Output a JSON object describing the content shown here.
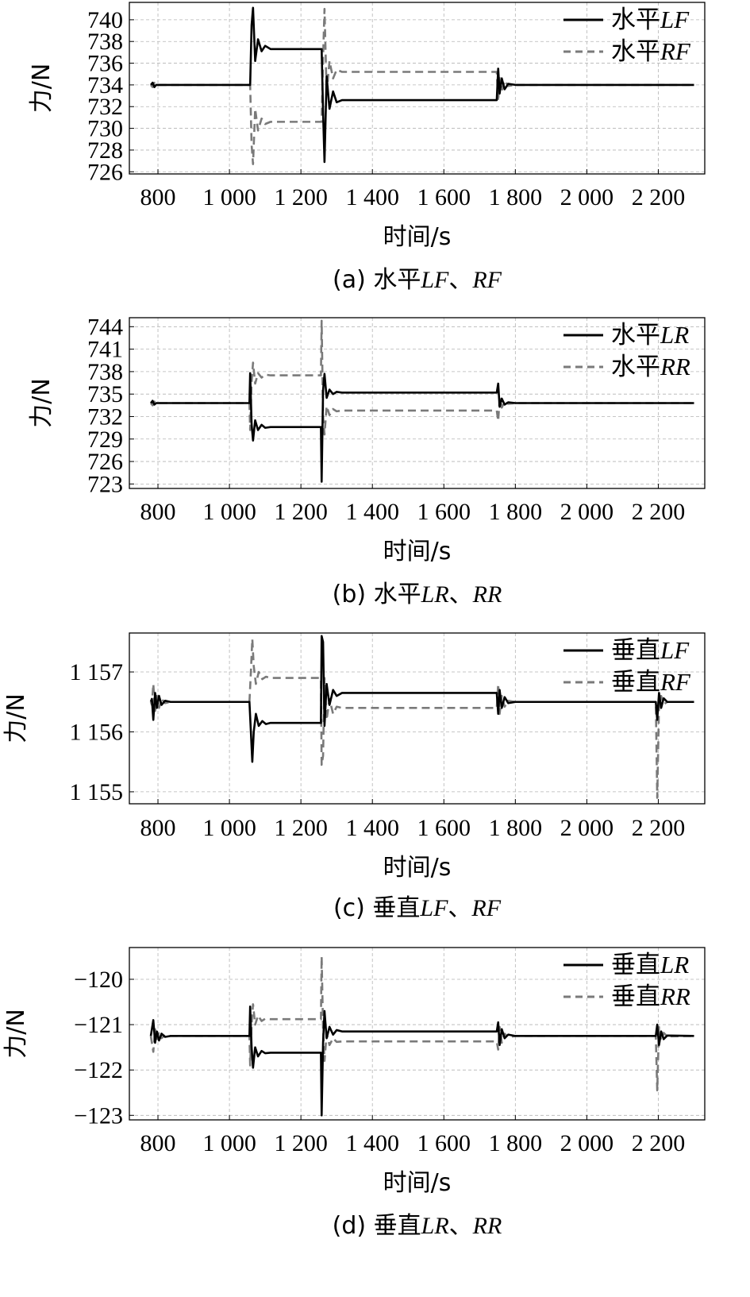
{
  "chart_data": [
    {
      "type": "line",
      "caption": "(a) 水平LF、RF",
      "caption_parts": [
        "(a) 水平",
        "LF",
        "、",
        "RF"
      ],
      "xlabel": "时间/s",
      "ylabel": "力/N",
      "xlim": [
        720,
        2330
      ],
      "ylim": [
        725.8,
        741.6
      ],
      "xticks": [
        800,
        1000,
        1200,
        1400,
        1600,
        1800,
        2000,
        2200
      ],
      "xtick_labels": [
        "800",
        "1 000",
        "1 200",
        "1 400",
        "1 600",
        "1 800",
        "2 000",
        "2 200"
      ],
      "yticks": [
        726,
        728,
        730,
        732,
        734,
        736,
        738,
        740
      ],
      "ytick_labels": [
        "726",
        "728",
        "730",
        "732",
        "734",
        "736",
        "738",
        "740"
      ],
      "grid": true,
      "legend_position": "top-right",
      "series": [
        {
          "name": "水平LF",
          "name_main": "水平",
          "name_italic": "LF",
          "style": "solid",
          "x": [
            780,
            785,
            790,
            795,
            1058,
            1062,
            1066,
            1072,
            1080,
            1090,
            1100,
            1115,
            1130,
            1258,
            1262,
            1266,
            1272,
            1280,
            1290,
            1300,
            1315,
            1330,
            1748,
            1752,
            1756,
            1762,
            1770,
            1780,
            1800,
            2300
          ],
          "y": [
            734,
            734.2,
            733.8,
            734,
            734,
            739.5,
            741.1,
            736.2,
            738.2,
            737.1,
            737.6,
            737.3,
            737.3,
            737.3,
            731.5,
            726.9,
            734.8,
            731.8,
            733.4,
            732.4,
            732.6,
            732.6,
            732.6,
            735.5,
            733.2,
            734.6,
            733.6,
            734.1,
            734,
            734
          ]
        },
        {
          "name": "水平RF",
          "name_main": "水平",
          "name_italic": "RF",
          "style": "dashed",
          "x": [
            780,
            785,
            790,
            795,
            1058,
            1062,
            1066,
            1072,
            1080,
            1090,
            1100,
            1115,
            1130,
            1258,
            1262,
            1266,
            1272,
            1280,
            1290,
            1300,
            1315,
            1330,
            1748,
            1752,
            1756,
            1762,
            1770,
            1780,
            1800,
            2300
          ],
          "y": [
            734,
            733.8,
            734.2,
            734,
            734,
            728.5,
            726.7,
            731.8,
            729.8,
            730.9,
            730.4,
            730.6,
            730.6,
            730.6,
            736.5,
            741,
            733.2,
            736.2,
            734.6,
            735.4,
            735.2,
            735.2,
            735.2,
            732.5,
            734.8,
            733.4,
            734.4,
            733.9,
            734,
            734
          ]
        }
      ]
    },
    {
      "type": "line",
      "caption": "(b) 水平LR、RR",
      "caption_parts": [
        "(b) 水平",
        "LR",
        "、",
        "RR"
      ],
      "xlabel": "时间/s",
      "ylabel": "力/N",
      "xlim": [
        720,
        2330
      ],
      "ylim": [
        722.4,
        745.2
      ],
      "xticks": [
        800,
        1000,
        1200,
        1400,
        1600,
        1800,
        2000,
        2200
      ],
      "xtick_labels": [
        "800",
        "1 000",
        "1 200",
        "1 400",
        "1 600",
        "1 800",
        "2 000",
        "2 200"
      ],
      "yticks": [
        723,
        726,
        729,
        732,
        735,
        738,
        741,
        744
      ],
      "ytick_labels": [
        "723",
        "726",
        "729",
        "732",
        "735",
        "738",
        "741",
        "744"
      ],
      "grid": true,
      "legend_position": "top-right",
      "series": [
        {
          "name": "水平LR",
          "name_main": "水平",
          "name_italic": "LR",
          "style": "solid",
          "x": [
            780,
            785,
            790,
            795,
            1056,
            1058,
            1062,
            1066,
            1072,
            1080,
            1090,
            1100,
            1115,
            1130,
            1256,
            1258,
            1262,
            1266,
            1272,
            1280,
            1290,
            1300,
            1315,
            1330,
            1748,
            1752,
            1756,
            1762,
            1770,
            1780,
            1800,
            2300
          ],
          "y": [
            733.8,
            734.1,
            733.6,
            733.8,
            733.8,
            737.8,
            731,
            728.8,
            731.5,
            730.2,
            730.9,
            730.5,
            730.6,
            730.6,
            730.6,
            723.3,
            735.5,
            737.7,
            734.5,
            735.6,
            735,
            735.3,
            735.2,
            735.2,
            735.2,
            736.4,
            733.3,
            734.4,
            733.6,
            733.9,
            733.8,
            733.8
          ]
        },
        {
          "name": "水平RR",
          "name_main": "水平",
          "name_italic": "RR",
          "style": "dashed",
          "x": [
            780,
            785,
            790,
            795,
            1056,
            1058,
            1062,
            1066,
            1072,
            1080,
            1090,
            1100,
            1115,
            1130,
            1256,
            1258,
            1262,
            1266,
            1272,
            1280,
            1290,
            1300,
            1315,
            1330,
            1748,
            1752,
            1756,
            1762,
            1770,
            1780,
            1800,
            2300
          ],
          "y": [
            733.8,
            733.5,
            734,
            733.8,
            733.8,
            730.2,
            736.5,
            739.2,
            736.4,
            737.8,
            737.2,
            737.6,
            737.5,
            737.5,
            737.5,
            744.8,
            732,
            729.6,
            733.4,
            732.2,
            733,
            732.7,
            732.8,
            732.8,
            732.8,
            731.4,
            734.4,
            733.2,
            734,
            733.7,
            733.8,
            733.8
          ]
        }
      ]
    },
    {
      "type": "line",
      "caption": "(c) 垂直LF、RF",
      "caption_parts": [
        "(c) 垂直",
        "LF",
        "、",
        "RF"
      ],
      "xlabel": "时间/s",
      "ylabel": "力/N",
      "xlim": [
        720,
        2330
      ],
      "ylim": [
        1154.8,
        1157.65
      ],
      "xticks": [
        800,
        1000,
        1200,
        1400,
        1600,
        1800,
        2000,
        2200
      ],
      "xtick_labels": [
        "800",
        "1 000",
        "1 200",
        "1 400",
        "1 600",
        "1 800",
        "2 000",
        "2 200"
      ],
      "yticks": [
        1155,
        1156,
        1157
      ],
      "ytick_labels": [
        "1 155",
        "1 156",
        "1 157"
      ],
      "grid": true,
      "legend_position": "top-right",
      "series": [
        {
          "name": "垂直LF",
          "name_main": "垂直",
          "name_italic": "LF",
          "style": "solid",
          "x": [
            780,
            783,
            787,
            792,
            797,
            803,
            810,
            820,
            835,
            1056,
            1060,
            1064,
            1068,
            1074,
            1082,
            1092,
            1102,
            1115,
            1130,
            1256,
            1258,
            1262,
            1266,
            1272,
            1280,
            1290,
            1300,
            1315,
            1330,
            1748,
            1752,
            1756,
            1762,
            1770,
            1780,
            1800,
            2188,
            2193,
            2197,
            2202,
            2208,
            2215,
            2225,
            2300
          ],
          "y": [
            1156.5,
            1156.55,
            1156.2,
            1156.65,
            1156.4,
            1156.6,
            1156.45,
            1156.52,
            1156.5,
            1156.5,
            1156.0,
            1155.5,
            1156.0,
            1156.3,
            1156.1,
            1156.18,
            1156.13,
            1156.15,
            1156.15,
            1156.15,
            1157.6,
            1157.5,
            1156.1,
            1156.8,
            1156.45,
            1156.7,
            1156.6,
            1156.65,
            1156.65,
            1156.65,
            1156.3,
            1156.7,
            1156.4,
            1156.58,
            1156.48,
            1156.5,
            1156.5,
            1156.5,
            1156.2,
            1156.65,
            1156.4,
            1156.56,
            1156.5,
            1156.5
          ]
        },
        {
          "name": "垂直RF",
          "name_main": "垂直",
          "name_italic": "RF",
          "style": "dashed",
          "x": [
            780,
            783,
            787,
            792,
            797,
            803,
            810,
            820,
            835,
            1056,
            1060,
            1064,
            1068,
            1074,
            1082,
            1092,
            1102,
            1115,
            1130,
            1256,
            1258,
            1262,
            1266,
            1272,
            1280,
            1290,
            1300,
            1315,
            1330,
            1748,
            1752,
            1756,
            1762,
            1770,
            1780,
            1800,
            2188,
            2193,
            2197,
            2202,
            2208,
            2215,
            2225,
            2300
          ],
          "y": [
            1156.5,
            1156.45,
            1156.8,
            1156.35,
            1156.6,
            1156.4,
            1156.55,
            1156.48,
            1156.5,
            1156.5,
            1157.0,
            1157.55,
            1157.1,
            1156.8,
            1157.0,
            1156.88,
            1156.92,
            1156.9,
            1156.9,
            1156.9,
            1155.45,
            1155.6,
            1156.9,
            1156.2,
            1156.55,
            1156.3,
            1156.42,
            1156.4,
            1156.4,
            1156.4,
            1156.8,
            1156.3,
            1156.6,
            1156.42,
            1156.52,
            1156.5,
            1156.5,
            1156.5,
            1154.9,
            1156.45,
            1156.6,
            1156.46,
            1156.5,
            1156.5
          ]
        }
      ]
    },
    {
      "type": "line",
      "caption": "(d) 垂直LR、RR",
      "caption_parts": [
        "(d) 垂直",
        "LR",
        "、",
        "RR"
      ],
      "xlabel": "时间/s",
      "ylabel": "力/N",
      "xlim": [
        720,
        2330
      ],
      "ylim": [
        -123.1,
        -119.3
      ],
      "xticks": [
        800,
        1000,
        1200,
        1400,
        1600,
        1800,
        2000,
        2200
      ],
      "xtick_labels": [
        "800",
        "1 000",
        "1 200",
        "1 400",
        "1 600",
        "1 800",
        "2 000",
        "2 200"
      ],
      "yticks": [
        -123,
        -122,
        -121,
        -120
      ],
      "ytick_labels": [
        "−123",
        "−122",
        "−121",
        "−120"
      ],
      "grid": true,
      "legend_position": "top-right",
      "series": [
        {
          "name": "垂直LR",
          "name_main": "垂直",
          "name_italic": "LR",
          "style": "solid",
          "x": [
            780,
            783,
            787,
            792,
            797,
            803,
            810,
            820,
            835,
            1056,
            1058,
            1062,
            1066,
            1072,
            1080,
            1090,
            1100,
            1115,
            1130,
            1256,
            1258,
            1262,
            1266,
            1272,
            1280,
            1290,
            1300,
            1315,
            1330,
            1748,
            1752,
            1756,
            1762,
            1770,
            1780,
            1800,
            2188,
            2193,
            2197,
            2202,
            2208,
            2215,
            2225,
            2300
          ],
          "y": [
            -121.25,
            -121.1,
            -120.9,
            -121.4,
            -121.15,
            -121.35,
            -121.2,
            -121.27,
            -121.25,
            -121.25,
            -120.6,
            -121.5,
            -121.95,
            -121.5,
            -121.7,
            -121.58,
            -121.63,
            -121.62,
            -121.62,
            -121.62,
            -123.0,
            -121.4,
            -120.7,
            -121.3,
            -121.05,
            -121.22,
            -121.12,
            -121.15,
            -121.15,
            -121.15,
            -120.95,
            -121.45,
            -121.1,
            -121.3,
            -121.22,
            -121.25,
            -121.25,
            -121.25,
            -121.0,
            -121.45,
            -121.15,
            -121.32,
            -121.24,
            -121.25
          ]
        },
        {
          "name": "垂直RR",
          "name_main": "垂直",
          "name_italic": "RR",
          "style": "dashed",
          "x": [
            780,
            783,
            787,
            792,
            797,
            803,
            810,
            820,
            835,
            1056,
            1058,
            1062,
            1066,
            1072,
            1080,
            1090,
            1100,
            1115,
            1130,
            1256,
            1258,
            1262,
            1266,
            1272,
            1280,
            1290,
            1300,
            1315,
            1330,
            1748,
            1752,
            1756,
            1762,
            1770,
            1780,
            1800,
            2188,
            2193,
            2197,
            2202,
            2208,
            2215,
            2225,
            2300
          ],
          "y": [
            -121.25,
            -121.4,
            -121.6,
            -121.1,
            -121.35,
            -121.15,
            -121.3,
            -121.23,
            -121.25,
            -121.25,
            -121.9,
            -121.0,
            -120.55,
            -121.0,
            -120.8,
            -120.92,
            -120.87,
            -120.88,
            -120.88,
            -120.88,
            -119.5,
            -121.1,
            -121.8,
            -121.2,
            -121.45,
            -121.3,
            -121.38,
            -121.37,
            -121.37,
            -121.37,
            -121.55,
            -121.05,
            -121.4,
            -121.2,
            -121.28,
            -121.25,
            -121.25,
            -121.25,
            -122.45,
            -121.05,
            -121.35,
            -121.18,
            -121.26,
            -121.25
          ]
        }
      ]
    }
  ]
}
